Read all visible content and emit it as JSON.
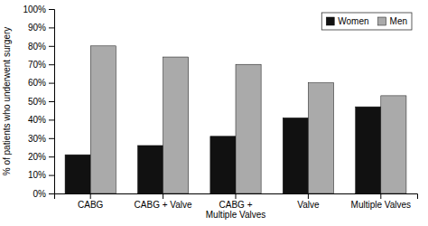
{
  "chart_data": {
    "type": "bar",
    "categories": [
      "CABG",
      "CABG + Valve",
      "CABG +\nMultiple Valves",
      "Valve",
      "Multiple Valves"
    ],
    "series": [
      {
        "name": "Women",
        "color": "#111111",
        "values": [
          0.21,
          0.26,
          0.31,
          0.41,
          0.47
        ]
      },
      {
        "name": "Men",
        "color": "#aaaaaa",
        "values": [
          0.8,
          0.74,
          0.7,
          0.6,
          0.53
        ]
      }
    ],
    "y_label": "% of patients who underwent surgery",
    "ylim": [
      0,
      1.0
    ],
    "yticks": [
      {
        "value": 0.0,
        "label": "0%"
      },
      {
        "value": 0.1,
        "label": "10%"
      },
      {
        "value": 0.2,
        "label": "20%"
      },
      {
        "value": 0.3,
        "label": "30%"
      },
      {
        "value": 0.4,
        "label": "40%"
      },
      {
        "value": 0.5,
        "label": "50%"
      },
      {
        "value": 0.6,
        "label": "60%"
      },
      {
        "value": 0.7,
        "label": "70%"
      },
      {
        "value": 0.8,
        "label": "80%"
      },
      {
        "value": 0.9,
        "label": "90%"
      },
      {
        "value": 1.0,
        "label": "100%"
      }
    ],
    "grid": false,
    "legend": "upper right"
  }
}
